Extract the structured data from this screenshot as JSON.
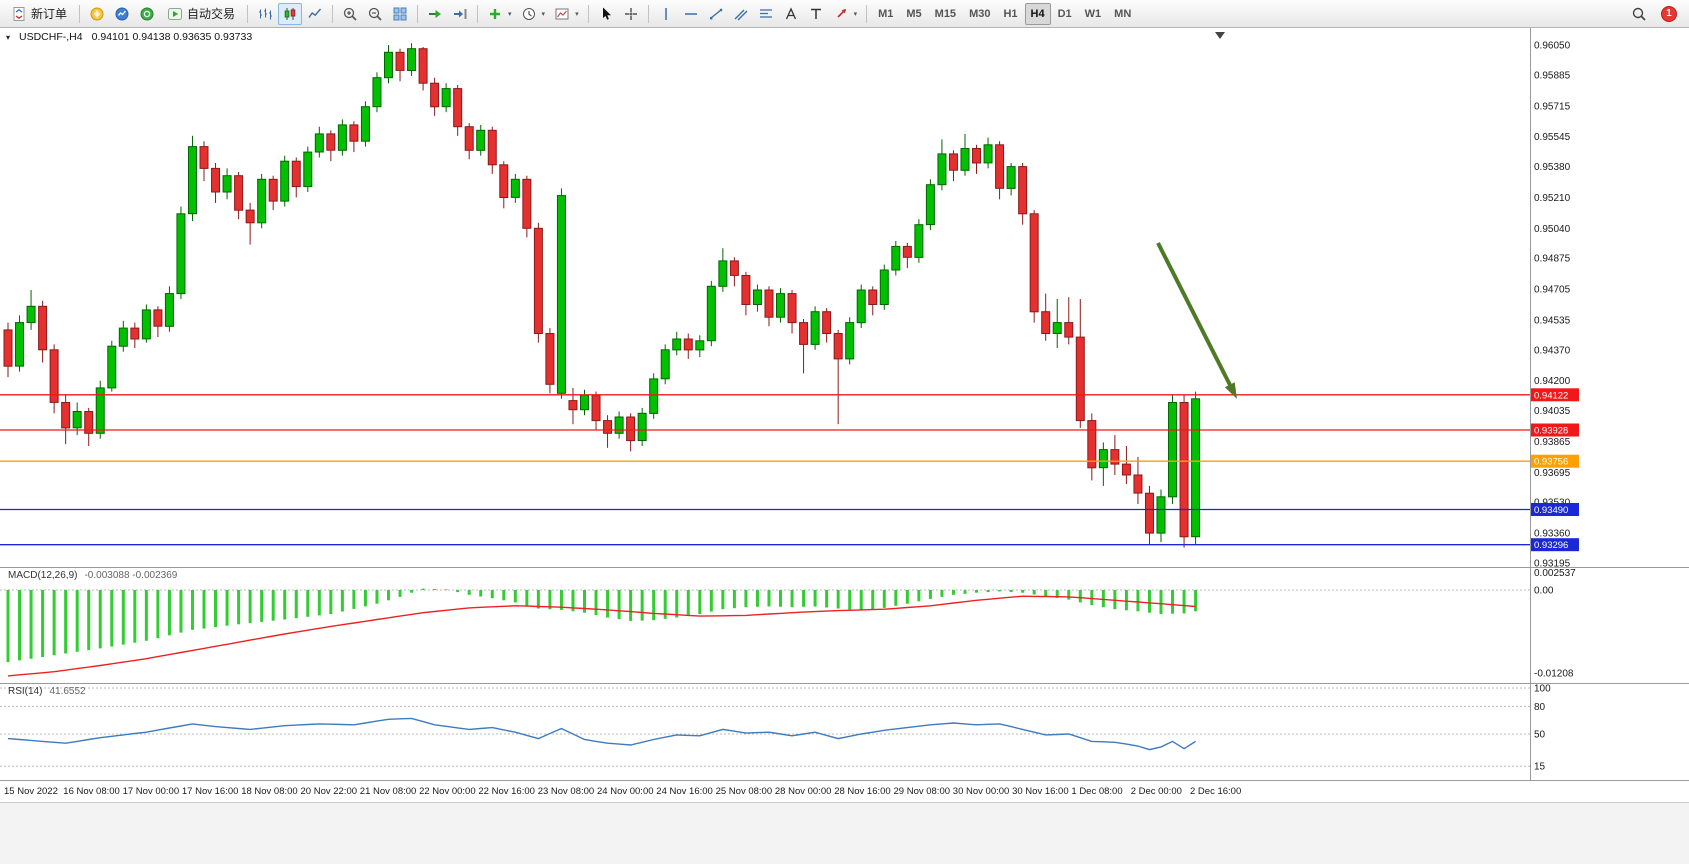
{
  "toolbar": {
    "new_order_label": "新订单",
    "autotrading_label": "自动交易",
    "timeframes": [
      "M1",
      "M5",
      "M15",
      "M30",
      "H1",
      "H4",
      "D1",
      "W1",
      "MN"
    ],
    "active_timeframe": "H4",
    "notification_count": "1",
    "icons": {
      "new-order": "document-with-arrows",
      "metaeditor": "yellow-circle",
      "market-watch": "blue-circle-chart",
      "expert-advisors": "green-circle",
      "autotrading": "green-play-triangle",
      "bar-chart": "ohlc-bars",
      "candlestick-chart": "candles",
      "line-chart": "polyline",
      "zoom-in": "magnifier-plus",
      "zoom-out": "magnifier-minus",
      "tile-windows": "grid-squares",
      "auto-scroll": "green-arrow-right",
      "chart-shift": "arrow-to-bar",
      "indicators": "green-plus",
      "periods": "clock",
      "templates": "picture-chart",
      "cursor": "pointer-arrow",
      "crosshair": "cross",
      "vertical-line": "vline",
      "horizontal-line": "hline",
      "trendline": "diagonal-line",
      "channel": "parallel-lines",
      "fibonacci": "fib-levels",
      "text": "letter-A",
      "text-label": "letter-T",
      "arrows": "red-arrow",
      "search": "magnifier",
      "notification": "red-badge"
    }
  },
  "chart_data": {
    "type": "candlestick",
    "symbol": "USDCHF-",
    "period": "H4",
    "header": {
      "title": "USDCHF-,H4",
      "ohlc": "0.94101 0.94138 0.93635 0.93733"
    },
    "ylim": [
      0.93173,
      0.96144
    ],
    "price_axis_ticks": [
      "0.96050",
      "0.95885",
      "0.95715",
      "0.95545",
      "0.95380",
      "0.95210",
      "0.95040",
      "0.94875",
      "0.94705",
      "0.94535",
      "0.94370",
      "0.94200",
      "0.94035",
      "0.93865",
      "0.93695",
      "0.93530",
      "0.93360",
      "0.93195"
    ],
    "time_axis_labels": [
      "15 Nov 2022",
      "16 Nov 08:00",
      "17 Nov 00:00",
      "17 Nov 16:00",
      "18 Nov 08:00",
      "20 Nov 22:00",
      "21 Nov 08:00",
      "22 Nov 00:00",
      "22 Nov 16:00",
      "23 Nov 08:00",
      "24 Nov 00:00",
      "24 Nov 16:00",
      "25 Nov 08:00",
      "28 Nov 00:00",
      "28 Nov 16:00",
      "29 Nov 08:00",
      "30 Nov 00:00",
      "30 Nov 16:00",
      "1 Dec 08:00",
      "2 Dec 00:00",
      "2 Dec 16:00"
    ],
    "horizontal_lines": [
      {
        "price": 0.94122,
        "label": "0.94122",
        "color": "#f01818"
      },
      {
        "price": 0.93928,
        "label": "0.93928",
        "color": "#f01818"
      },
      {
        "price": 0.93756,
        "label": "0.93756",
        "color": "#ff9f00"
      },
      {
        "price": 0.9349,
        "label": "0.93490",
        "color": "#1a28d8"
      },
      {
        "price": 0.93296,
        "label": "0.93296",
        "color": "#1a28d8"
      }
    ],
    "candles": [
      [
        0.9448,
        0.9452,
        0.9422,
        0.9428
      ],
      [
        0.9428,
        0.9456,
        0.9425,
        0.9452
      ],
      [
        0.9452,
        0.947,
        0.9448,
        0.9461
      ],
      [
        0.9461,
        0.9464,
        0.943,
        0.9437
      ],
      [
        0.9437,
        0.944,
        0.9402,
        0.9408
      ],
      [
        0.9408,
        0.9412,
        0.9385,
        0.9394
      ],
      [
        0.9394,
        0.9408,
        0.939,
        0.9403
      ],
      [
        0.9403,
        0.9405,
        0.9384,
        0.9391
      ],
      [
        0.9391,
        0.942,
        0.9388,
        0.9416
      ],
      [
        0.9416,
        0.9442,
        0.9414,
        0.9439
      ],
      [
        0.9439,
        0.9453,
        0.9436,
        0.9449
      ],
      [
        0.9449,
        0.9452,
        0.9438,
        0.9443
      ],
      [
        0.9443,
        0.9462,
        0.9441,
        0.9459
      ],
      [
        0.9459,
        0.9461,
        0.9444,
        0.945
      ],
      [
        0.945,
        0.9472,
        0.9447,
        0.9468
      ],
      [
        0.9468,
        0.9516,
        0.9465,
        0.9512
      ],
      [
        0.9512,
        0.9555,
        0.9508,
        0.9549
      ],
      [
        0.9549,
        0.9552,
        0.953,
        0.9537
      ],
      [
        0.9537,
        0.954,
        0.9518,
        0.9524
      ],
      [
        0.9524,
        0.9537,
        0.952,
        0.9533
      ],
      [
        0.9533,
        0.9535,
        0.9509,
        0.9514
      ],
      [
        0.9514,
        0.9518,
        0.9495,
        0.9507
      ],
      [
        0.9507,
        0.9534,
        0.9504,
        0.9531
      ],
      [
        0.9531,
        0.9533,
        0.9514,
        0.9519
      ],
      [
        0.9519,
        0.9544,
        0.9516,
        0.9541
      ],
      [
        0.9541,
        0.9543,
        0.9521,
        0.9527
      ],
      [
        0.9527,
        0.9549,
        0.9524,
        0.9546
      ],
      [
        0.9546,
        0.956,
        0.9543,
        0.9556
      ],
      [
        0.9556,
        0.9558,
        0.9541,
        0.9547
      ],
      [
        0.9547,
        0.9564,
        0.9544,
        0.9561
      ],
      [
        0.9561,
        0.9563,
        0.9546,
        0.9552
      ],
      [
        0.9552,
        0.9574,
        0.9549,
        0.9571
      ],
      [
        0.9571,
        0.959,
        0.9568,
        0.9587
      ],
      [
        0.9587,
        0.9605,
        0.9584,
        0.9601
      ],
      [
        0.9601,
        0.9603,
        0.9585,
        0.9591
      ],
      [
        0.9591,
        0.9606,
        0.9588,
        0.9603
      ],
      [
        0.9603,
        0.9604,
        0.958,
        0.9584
      ],
      [
        0.9584,
        0.9587,
        0.9566,
        0.9571
      ],
      [
        0.9571,
        0.9584,
        0.9568,
        0.9581
      ],
      [
        0.9581,
        0.9583,
        0.9555,
        0.956
      ],
      [
        0.956,
        0.9562,
        0.9542,
        0.9547
      ],
      [
        0.9547,
        0.9561,
        0.9544,
        0.9558
      ],
      [
        0.9558,
        0.956,
        0.9534,
        0.9539
      ],
      [
        0.9539,
        0.9541,
        0.9515,
        0.9521
      ],
      [
        0.9521,
        0.9534,
        0.9518,
        0.9531
      ],
      [
        0.9531,
        0.9533,
        0.9499,
        0.9504
      ],
      [
        0.9504,
        0.9507,
        0.9441,
        0.9446
      ],
      [
        0.9446,
        0.9449,
        0.9413,
        0.9418
      ],
      [
        0.9413,
        0.9526,
        0.941,
        0.9522
      ],
      [
        0.9409,
        0.9416,
        0.9396,
        0.9404
      ],
      [
        0.9404,
        0.9415,
        0.9401,
        0.9412
      ],
      [
        0.9412,
        0.9414,
        0.9393,
        0.9398
      ],
      [
        0.9398,
        0.9401,
        0.9383,
        0.9391
      ],
      [
        0.9391,
        0.9403,
        0.9388,
        0.94
      ],
      [
        0.94,
        0.9402,
        0.9381,
        0.9387
      ],
      [
        0.9387,
        0.9405,
        0.9384,
        0.9402
      ],
      [
        0.9402,
        0.9424,
        0.9399,
        0.9421
      ],
      [
        0.9421,
        0.944,
        0.9418,
        0.9437
      ],
      [
        0.9437,
        0.9447,
        0.9434,
        0.9443
      ],
      [
        0.9443,
        0.9446,
        0.9432,
        0.9437
      ],
      [
        0.9437,
        0.9445,
        0.9433,
        0.9442
      ],
      [
        0.9442,
        0.9475,
        0.9439,
        0.9472
      ],
      [
        0.9472,
        0.9493,
        0.9469,
        0.9486
      ],
      [
        0.9486,
        0.9488,
        0.9472,
        0.9478
      ],
      [
        0.9478,
        0.948,
        0.9456,
        0.9462
      ],
      [
        0.9462,
        0.9473,
        0.9458,
        0.947
      ],
      [
        0.947,
        0.9472,
        0.945,
        0.9455
      ],
      [
        0.9455,
        0.9471,
        0.9452,
        0.9468
      ],
      [
        0.9468,
        0.947,
        0.9446,
        0.9452
      ],
      [
        0.9452,
        0.9454,
        0.9424,
        0.944
      ],
      [
        0.944,
        0.9461,
        0.9437,
        0.9458
      ],
      [
        0.9458,
        0.946,
        0.9441,
        0.9446
      ],
      [
        0.9446,
        0.9448,
        0.9396,
        0.9432
      ],
      [
        0.9432,
        0.9455,
        0.9429,
        0.9452
      ],
      [
        0.9452,
        0.9473,
        0.9449,
        0.947
      ],
      [
        0.947,
        0.9472,
        0.9456,
        0.9462
      ],
      [
        0.9462,
        0.9484,
        0.9459,
        0.9481
      ],
      [
        0.9481,
        0.9497,
        0.9478,
        0.9494
      ],
      [
        0.9494,
        0.9496,
        0.9482,
        0.9488
      ],
      [
        0.9488,
        0.9509,
        0.9485,
        0.9506
      ],
      [
        0.9506,
        0.9531,
        0.9503,
        0.9528
      ],
      [
        0.9528,
        0.9553,
        0.9525,
        0.9545
      ],
      [
        0.9545,
        0.9547,
        0.953,
        0.9536
      ],
      [
        0.9536,
        0.9556,
        0.9533,
        0.9548
      ],
      [
        0.9548,
        0.955,
        0.9534,
        0.954
      ],
      [
        0.954,
        0.9554,
        0.9537,
        0.955
      ],
      [
        0.955,
        0.9552,
        0.952,
        0.9526
      ],
      [
        0.9526,
        0.954,
        0.9522,
        0.9538
      ],
      [
        0.9538,
        0.954,
        0.9506,
        0.9512
      ],
      [
        0.9512,
        0.9514,
        0.9452,
        0.9458
      ],
      [
        0.9458,
        0.9468,
        0.9442,
        0.9446
      ],
      [
        0.9446,
        0.9465,
        0.9438,
        0.9452
      ],
      [
        0.9452,
        0.9466,
        0.944,
        0.9444
      ],
      [
        0.9444,
        0.9465,
        0.9394,
        0.9398
      ],
      [
        0.9398,
        0.9402,
        0.9365,
        0.9372
      ],
      [
        0.9372,
        0.9386,
        0.9362,
        0.9382
      ],
      [
        0.9382,
        0.939,
        0.9368,
        0.9374
      ],
      [
        0.9374,
        0.9384,
        0.9363,
        0.9368
      ],
      [
        0.9368,
        0.9378,
        0.9352,
        0.9358
      ],
      [
        0.9358,
        0.9362,
        0.933,
        0.9336
      ],
      [
        0.9336,
        0.936,
        0.9331,
        0.9356
      ],
      [
        0.9356,
        0.9412,
        0.9352,
        0.9408
      ],
      [
        0.9408,
        0.9412,
        0.9328,
        0.9334
      ],
      [
        0.9334,
        0.9414,
        0.933,
        0.941
      ]
    ],
    "indicators": {
      "macd": {
        "name": "MACD(12,26,9)",
        "value_text": "-0.003088 -0.002369",
        "axis_labels": [
          {
            "v": 0.002537,
            "t": "0.002537"
          },
          {
            "v": 0,
            "t": "0.00"
          },
          {
            "v": -0.01208,
            "t": "-0.01208"
          }
        ],
        "histogram_color": "#33cc33",
        "signal_color": "#ee2222",
        "histogram_points": [
          [
            0,
            -0.0105
          ],
          [
            4,
            -0.0095
          ],
          [
            8,
            -0.0085
          ],
          [
            12,
            -0.0074
          ],
          [
            16,
            -0.0058
          ],
          [
            20,
            -0.005
          ],
          [
            24,
            -0.0043
          ],
          [
            28,
            -0.0035
          ],
          [
            32,
            -0.002
          ],
          [
            34,
            -0.001
          ],
          [
            36,
            0.0002
          ],
          [
            38,
            0.0001
          ],
          [
            40,
            -0.0007
          ],
          [
            42,
            -0.0012
          ],
          [
            44,
            -0.0018
          ],
          [
            46,
            -0.0027
          ],
          [
            48,
            -0.0029
          ],
          [
            50,
            -0.0033
          ],
          [
            52,
            -0.004
          ],
          [
            54,
            -0.0045
          ],
          [
            56,
            -0.0044
          ],
          [
            58,
            -0.004
          ],
          [
            60,
            -0.0035
          ],
          [
            62,
            -0.0028
          ],
          [
            64,
            -0.0025
          ],
          [
            66,
            -0.0024
          ],
          [
            68,
            -0.0025
          ],
          [
            70,
            -0.0024
          ],
          [
            72,
            -0.0027
          ],
          [
            74,
            -0.003
          ],
          [
            76,
            -0.0026
          ],
          [
            78,
            -0.002
          ],
          [
            80,
            -0.0013
          ],
          [
            82,
            -0.0007
          ],
          [
            84,
            -0.0004
          ],
          [
            86,
            -0.0002
          ],
          [
            88,
            -0.0004
          ],
          [
            90,
            -0.0009
          ],
          [
            92,
            -0.0014
          ],
          [
            94,
            -0.0022
          ],
          [
            96,
            -0.0028
          ],
          [
            98,
            -0.0031
          ],
          [
            100,
            -0.0035
          ],
          [
            102,
            -0.0034
          ],
          [
            103,
            -0.0031
          ]
        ],
        "signal_points": [
          [
            0,
            -0.0125
          ],
          [
            4,
            -0.0119
          ],
          [
            8,
            -0.011
          ],
          [
            12,
            -0.01
          ],
          [
            16,
            -0.0088
          ],
          [
            20,
            -0.0076
          ],
          [
            24,
            -0.0064
          ],
          [
            28,
            -0.0053
          ],
          [
            32,
            -0.0043
          ],
          [
            36,
            -0.0033
          ],
          [
            40,
            -0.0026
          ],
          [
            44,
            -0.0023
          ],
          [
            48,
            -0.0025
          ],
          [
            52,
            -0.0029
          ],
          [
            56,
            -0.0034
          ],
          [
            60,
            -0.0038
          ],
          [
            64,
            -0.0037
          ],
          [
            68,
            -0.0033
          ],
          [
            72,
            -0.003
          ],
          [
            76,
            -0.0028
          ],
          [
            80,
            -0.0023
          ],
          [
            84,
            -0.0015
          ],
          [
            88,
            -0.0009
          ],
          [
            92,
            -0.001
          ],
          [
            96,
            -0.0015
          ],
          [
            100,
            -0.002
          ],
          [
            103,
            -0.0024
          ]
        ]
      },
      "rsi": {
        "name": "RSI(14)",
        "value_text": "41.6552",
        "axis_labels": [
          "100",
          "80",
          "50",
          "15"
        ],
        "levels": [
          100,
          80,
          50,
          15
        ],
        "line_color": "#3e7bbf",
        "line_points": [
          [
            0,
            45
          ],
          [
            3,
            42
          ],
          [
            5,
            40
          ],
          [
            8,
            46
          ],
          [
            12,
            52
          ],
          [
            16,
            61
          ],
          [
            18,
            58
          ],
          [
            21,
            55
          ],
          [
            24,
            59
          ],
          [
            27,
            61
          ],
          [
            30,
            60
          ],
          [
            33,
            66
          ],
          [
            35,
            67
          ],
          [
            37,
            60
          ],
          [
            40,
            55
          ],
          [
            42,
            57
          ],
          [
            44,
            52
          ],
          [
            46,
            45
          ],
          [
            48,
            56
          ],
          [
            50,
            44
          ],
          [
            52,
            40
          ],
          [
            54,
            38
          ],
          [
            56,
            44
          ],
          [
            58,
            49
          ],
          [
            60,
            48
          ],
          [
            62,
            55
          ],
          [
            64,
            51
          ],
          [
            66,
            52
          ],
          [
            68,
            48
          ],
          [
            70,
            52
          ],
          [
            72,
            45
          ],
          [
            74,
            50
          ],
          [
            76,
            54
          ],
          [
            78,
            57
          ],
          [
            80,
            60
          ],
          [
            82,
            62
          ],
          [
            84,
            60
          ],
          [
            86,
            61
          ],
          [
            88,
            55
          ],
          [
            90,
            49
          ],
          [
            92,
            50
          ],
          [
            94,
            42
          ],
          [
            96,
            41
          ],
          [
            98,
            37
          ],
          [
            99,
            33
          ],
          [
            100,
            36
          ],
          [
            101,
            42
          ],
          [
            102,
            34
          ],
          [
            103,
            42
          ]
        ]
      }
    },
    "annotation_arrow": {
      "color": "#4e7a28"
    },
    "colors": {
      "bull": "#00c000",
      "bull_border": "#006600",
      "bear": "#e53030",
      "bear_border": "#8b1a1a",
      "background": "#ffffff",
      "axis_text": "#1a1a1a",
      "separator": "#9a9a9a",
      "level_dash": "#b8b8b8"
    }
  }
}
